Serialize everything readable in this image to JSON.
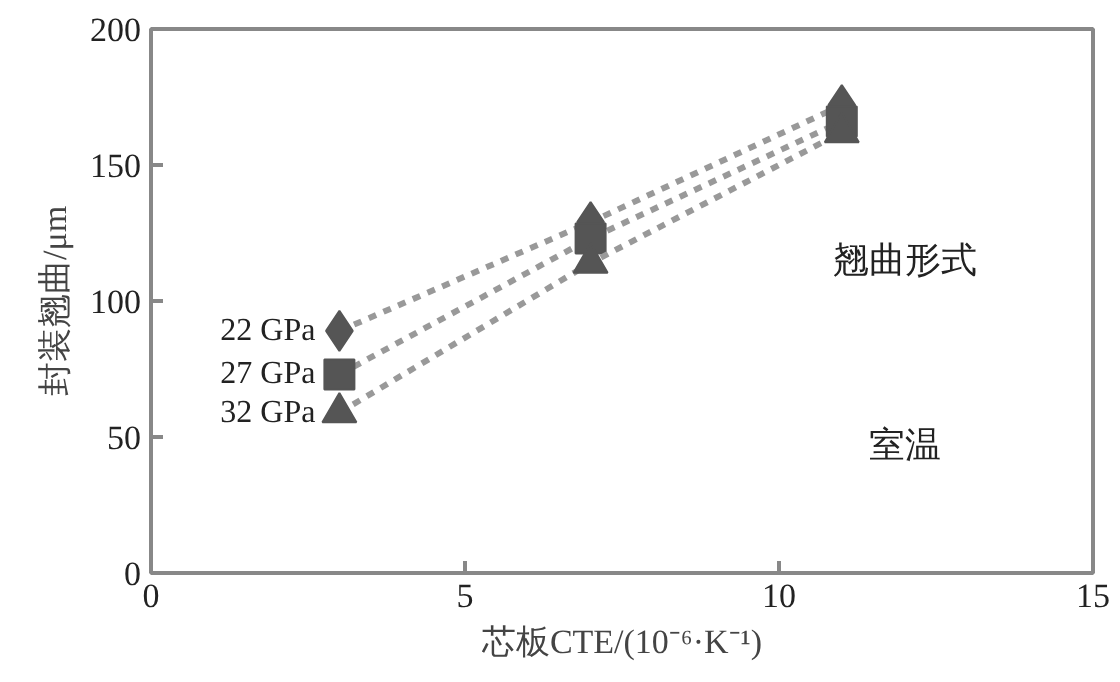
{
  "chart_data": {
    "type": "line",
    "xlabel": "芯板CTE/(10⁻⁶·K⁻¹)",
    "ylabel": "封装翘曲/μm",
    "x": [
      3,
      7,
      11
    ],
    "series": [
      {
        "name": "22 GPa",
        "color": "#555555",
        "marker": "diamond",
        "values": [
          89,
          129,
          172
        ]
      },
      {
        "name": "27 GPa",
        "color": "#555555",
        "marker": "square",
        "values": [
          73,
          123,
          166
        ]
      },
      {
        "name": "32 GPa",
        "color": "#555555",
        "marker": "triangle",
        "values": [
          59,
          114,
          162
        ]
      }
    ],
    "line_style": "dotted",
    "xlim": [
      0,
      15
    ],
    "xticks": [
      0,
      5,
      10,
      15
    ],
    "ylim": [
      0,
      200
    ],
    "yticks": [
      0,
      50,
      100,
      150,
      200
    ],
    "grid": false,
    "annotations": [
      "翘曲形式",
      "室温"
    ]
  }
}
